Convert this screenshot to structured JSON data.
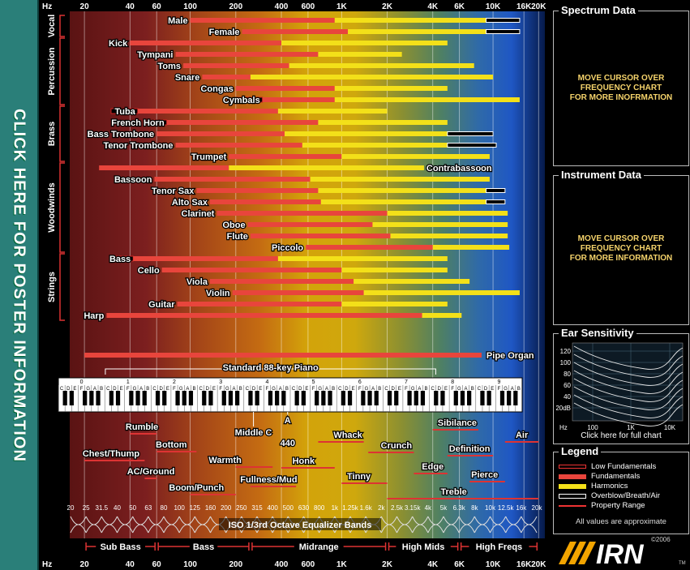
{
  "poster_link": "CLICK HERE FOR POSTER INFORMATION",
  "chart_data": {
    "type": "range-bar",
    "x_scale": "log",
    "xlim": [
      16,
      22000
    ],
    "freq_ticks": [
      {
        "f": 20,
        "label": "20"
      },
      {
        "f": 40,
        "label": "40"
      },
      {
        "f": 60,
        "label": "60"
      },
      {
        "f": 100,
        "label": "100"
      },
      {
        "f": 200,
        "label": "200"
      },
      {
        "f": 400,
        "label": "400"
      },
      {
        "f": 600,
        "label": "600"
      },
      {
        "f": 1000,
        "label": "1K"
      },
      {
        "f": 2000,
        "label": "2K"
      },
      {
        "f": 4000,
        "label": "4K"
      },
      {
        "f": 6000,
        "label": "6K"
      },
      {
        "f": 10000,
        "label": "10K"
      },
      {
        "f": 16000,
        "label": "16K"
      },
      {
        "f": 20000,
        "label": "20K"
      }
    ],
    "axis_unit": "Hz",
    "groups": [
      {
        "name": "Vocal",
        "start": 0,
        "end": 1
      },
      {
        "name": "Percussion",
        "start": 2,
        "end": 7
      },
      {
        "name": "Brass",
        "start": 8,
        "end": 12
      },
      {
        "name": "Woodwinds",
        "start": 13,
        "end": 20
      },
      {
        "name": "Strings",
        "start": 21,
        "end": 26
      }
    ],
    "instruments": [
      {
        "name": "Male",
        "low": 0,
        "fund": [
          100,
          900
        ],
        "harm": [
          900,
          9000
        ],
        "air": [
          9000,
          15000
        ],
        "label_side": "left"
      },
      {
        "name": "Female",
        "low": 0,
        "fund": [
          220,
          1100
        ],
        "harm": [
          1100,
          9000
        ],
        "air": [
          9000,
          15000
        ],
        "label_side": "left"
      },
      {
        "name": "Kick",
        "low": 0,
        "fund": [
          40,
          400
        ],
        "harm": [
          400,
          5000
        ],
        "air": 0,
        "label_side": "left"
      },
      {
        "name": "Tympani",
        "low": 0,
        "fund": [
          80,
          700
        ],
        "harm": [
          700,
          2500
        ],
        "air": 0,
        "label_side": "left"
      },
      {
        "name": "Toms",
        "low": 0,
        "fund": [
          90,
          450
        ],
        "harm": [
          450,
          7500
        ],
        "air": 0,
        "label_side": "left"
      },
      {
        "name": "Snare",
        "low": 0,
        "fund": [
          120,
          250
        ],
        "harm": [
          250,
          10000
        ],
        "air": 0,
        "label_side": "left"
      },
      {
        "name": "Congas",
        "low": 0,
        "fund": [
          200,
          900
        ],
        "harm": [
          900,
          5000
        ],
        "air": 0,
        "label_side": "left"
      },
      {
        "name": "Cymbals",
        "low": [
          200,
          300
        ],
        "fund": [
          300,
          900
        ],
        "harm": [
          900,
          15000
        ],
        "air": 0,
        "label_side": "left"
      },
      {
        "name": "Tuba",
        "low": [
          30,
          45
        ],
        "fund": [
          45,
          380
        ],
        "harm": [
          380,
          2000
        ],
        "air": 0,
        "label_side": "left"
      },
      {
        "name": "French Horn",
        "low": [
          58,
          70
        ],
        "fund": [
          70,
          700
        ],
        "harm": [
          700,
          5000
        ],
        "air": 0,
        "label_side": "left"
      },
      {
        "name": "Bass Trombone",
        "low": 0,
        "fund": [
          60,
          420
        ],
        "harm": [
          420,
          5000
        ],
        "air": [
          5000,
          10000
        ],
        "label_side": "left"
      },
      {
        "name": "Tenor Trombone",
        "low": 0,
        "fund": [
          80,
          550
        ],
        "harm": [
          550,
          5000
        ],
        "air": [
          5000,
          10500
        ],
        "label_side": "left"
      },
      {
        "name": "Trumpet",
        "low": 0,
        "fund": [
          180,
          1000
        ],
        "harm": [
          1000,
          9500
        ],
        "air": 0,
        "label_side": "left"
      },
      {
        "name": "Contrabassoon",
        "low": 0,
        "fund": [
          25,
          180
        ],
        "harm": [
          180,
          3500
        ],
        "air": 0,
        "label_side": "right"
      },
      {
        "name": "Bassoon",
        "low": 0,
        "fund": [
          58,
          620
        ],
        "harm": [
          620,
          9500
        ],
        "air": 0,
        "label_side": "left"
      },
      {
        "name": "Tenor Sax",
        "low": 0,
        "fund": [
          110,
          700
        ],
        "harm": [
          700,
          9000
        ],
        "air": [
          9000,
          12000
        ],
        "label_side": "left"
      },
      {
        "name": "Alto Sax",
        "low": 0,
        "fund": [
          135,
          730
        ],
        "harm": [
          730,
          9000
        ],
        "air": [
          9000,
          12000
        ],
        "label_side": "left"
      },
      {
        "name": "Clarinet",
        "low": 0,
        "fund": [
          150,
          2000
        ],
        "harm": [
          2000,
          12500
        ],
        "air": 0,
        "label_side": "left"
      },
      {
        "name": "Oboe",
        "low": 0,
        "fund": [
          240,
          1600
        ],
        "harm": [
          1600,
          12500
        ],
        "air": 0,
        "label_side": "left"
      },
      {
        "name": "Flute",
        "low": 0,
        "fund": [
          250,
          2100
        ],
        "harm": [
          2100,
          12500
        ],
        "air": 0,
        "label_side": "left"
      },
      {
        "name": "Piccolo",
        "low": 0,
        "fund": [
          580,
          4000
        ],
        "harm": [
          4000,
          12800
        ],
        "air": 0,
        "label_side": "left"
      },
      {
        "name": "Bass",
        "low": [
          30,
          42
        ],
        "fund": [
          42,
          380
        ],
        "harm": [
          380,
          5000
        ],
        "air": 0,
        "label_side": "left"
      },
      {
        "name": "Cello",
        "low": 0,
        "fund": [
          65,
          1000
        ],
        "harm": [
          1000,
          5000
        ],
        "air": 0,
        "label_side": "left"
      },
      {
        "name": "Viola",
        "low": 0,
        "fund": [
          135,
          1200
        ],
        "harm": [
          1200,
          7000
        ],
        "air": 0,
        "label_side": "left"
      },
      {
        "name": "Violin",
        "low": 0,
        "fund": [
          190,
          1400
        ],
        "harm": [
          1400,
          15000
        ],
        "air": 0,
        "label_side": "left"
      },
      {
        "name": "Guitar",
        "low": 0,
        "fund": [
          82,
          1000
        ],
        "harm": [
          1000,
          5000
        ],
        "air": 0,
        "label_side": "left"
      },
      {
        "name": "Harp",
        "low": 0,
        "fund": [
          28,
          3400
        ],
        "harm": [
          3400,
          6200
        ],
        "air": 0,
        "label_side": "left"
      }
    ],
    "pipe_organ": {
      "name": "Pipe Organ",
      "range": [
        20,
        8400
      ]
    },
    "piano": {
      "name": "Standard 88-key Piano",
      "range": [
        27.5,
        4186
      ],
      "octaves": [
        "0",
        "1",
        "2",
        "3",
        "4",
        "5",
        "6",
        "7",
        "8",
        "9"
      ],
      "white_notes": [
        "C",
        "D",
        "E",
        "F",
        "G",
        "A",
        "B"
      ],
      "middle_c": "Middle C",
      "a_label": "A",
      "a_freq": "440"
    },
    "descriptors": [
      {
        "text": "Rumble",
        "f1": 40,
        "f2": 60,
        "label_f": 48,
        "row": 0
      },
      {
        "text": "Chest/Thump",
        "f1": 20,
        "f2": 50,
        "label_f": 30,
        "row": 1
      },
      {
        "text": "Bottom",
        "f1": 60,
        "f2": 110,
        "label_f": 75,
        "row": 2
      },
      {
        "text": "AC/Ground",
        "f1": 50,
        "f2": 60,
        "label_f": 55,
        "row": 3
      },
      {
        "text": "Warmth",
        "f1": 200,
        "f2": 350,
        "label_f": 170,
        "row": 4
      },
      {
        "text": "Boom/Punch",
        "f1": 100,
        "f2": 200,
        "label_f": 110,
        "row": 5
      },
      {
        "text": "Fullness/Mud",
        "f1": 250,
        "f2": 500,
        "label_f": 330,
        "row": 6
      },
      {
        "text": "Honk",
        "f1": 400,
        "f2": 900,
        "label_f": 560,
        "row": 7
      },
      {
        "text": "Whack",
        "f1": 700,
        "f2": 1400,
        "label_f": 1100,
        "row": 8
      },
      {
        "text": "Tinny",
        "f1": 1000,
        "f2": 2000,
        "label_f": 1300,
        "row": 9
      },
      {
        "text": "Crunch",
        "f1": 1500,
        "f2": 3000,
        "label_f": 2300,
        "row": 10
      },
      {
        "text": "Edge",
        "f1": 3000,
        "f2": 5000,
        "label_f": 4000,
        "row": 11
      },
      {
        "text": "Sibilance",
        "f1": 4000,
        "f2": 8000,
        "label_f": 5800,
        "row": 12
      },
      {
        "text": "Definition",
        "f1": 5000,
        "f2": 10000,
        "label_f": 7000,
        "row": 13
      },
      {
        "text": "Pierce",
        "f1": 7000,
        "f2": 12000,
        "label_f": 8800,
        "row": 14
      },
      {
        "text": "Air",
        "f1": 12000,
        "f2": 20000,
        "label_f": 15500,
        "row": 15
      },
      {
        "text": "Treble",
        "f1": 2000,
        "f2": 20000,
        "label_f": 5500,
        "row": 16
      }
    ],
    "eq_bands": [
      "20",
      "25",
      "31.5",
      "40",
      "50",
      "63",
      "80",
      "100",
      "125",
      "160",
      "200",
      "250",
      "315",
      "400",
      "500",
      "630",
      "800",
      "1k",
      "1.25k",
      "1.6k",
      "2k",
      "2.5k",
      "3.15k",
      "4k",
      "5k",
      "6.3k",
      "8k",
      "10k",
      "12.5k",
      "16k",
      "20k"
    ],
    "eq_title": "ISO 1/3rd Octave Equalizer Bands",
    "regions": [
      {
        "name": "Sub Bass",
        "range": [
          20,
          60
        ]
      },
      {
        "name": "Bass",
        "range": [
          60,
          250
        ]
      },
      {
        "name": "Midrange",
        "range": [
          250,
          2000
        ]
      },
      {
        "name": "High Mids",
        "range": [
          2000,
          6000
        ]
      },
      {
        "name": "High Freqs",
        "range": [
          6000,
          20000
        ]
      }
    ]
  },
  "spectrum_panel": {
    "title": "Spectrum Data",
    "line1": "MOVE CURSOR OVER",
    "line2": "FREQUENCY CHART",
    "line3": "FOR MORE INOFRMATION"
  },
  "instrument_panel": {
    "title": "Instrument Data",
    "line1": "MOVE CURSOR OVER",
    "line2": "FREQUENCY CHART",
    "line3": "FOR MORE INFORMATION"
  },
  "ear_panel": {
    "title": "Ear Sensitivity",
    "y_ticks": [
      "120",
      "100",
      "80",
      "60",
      "40",
      "20dB"
    ],
    "x_ticks": [
      "Hz",
      "100",
      "1K",
      "10K"
    ],
    "link": "Click here for full chart"
  },
  "legend_panel": {
    "title": "Legend",
    "items": [
      "Low Fundamentals",
      "Fundamentals",
      "Harmonics",
      "Overblow/Breath/Air",
      "Property Range"
    ],
    "note": "All values are approximate",
    "colors": {
      "low": "#c01818",
      "fund": "#e8453c",
      "harm": "#f3e019",
      "air": "#ffffff"
    }
  },
  "logo": {
    "text": "IRN",
    "copyright": "©2006",
    "tm": "TM"
  }
}
